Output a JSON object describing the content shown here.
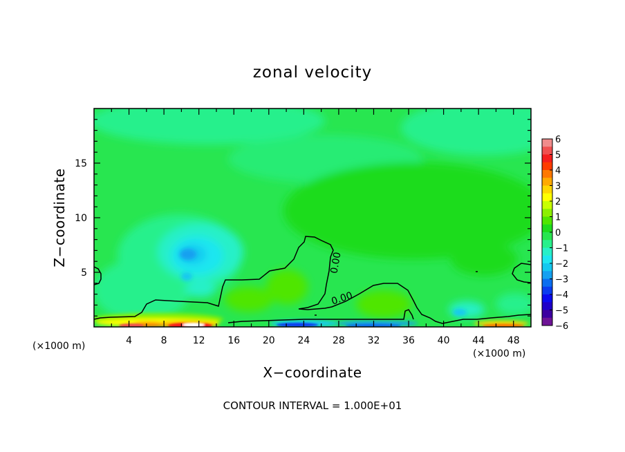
{
  "chart_data": {
    "type": "heatmap",
    "title": "zonal velocity",
    "xlabel": "X−coordinate",
    "ylabel": "Z−coordinate",
    "x_unit_left": "(×1000 m)",
    "x_unit_right": "(×1000 m)",
    "x_ticks": [
      "4",
      "8",
      "12",
      "16",
      "20",
      "24",
      "28",
      "32",
      "36",
      "40",
      "44",
      "48"
    ],
    "x_tick_values": [
      4,
      8,
      12,
      16,
      20,
      24,
      28,
      32,
      36,
      40,
      44,
      48
    ],
    "y_ticks": [
      "5",
      "10",
      "15"
    ],
    "y_tick_values": [
      5,
      10,
      15
    ],
    "xlim": [
      0,
      50
    ],
    "ylim": [
      0,
      20
    ],
    "contour_labels": [
      "0.00",
      "0.00"
    ],
    "colorbar": {
      "ticks": [
        "6",
        "5",
        "4",
        "3",
        "2",
        "1",
        "0",
        "−1",
        "−2",
        "−3",
        "−4",
        "−5",
        "−6"
      ],
      "levels": [
        {
          "range": [
            5.5,
            6
          ],
          "color": "#f08c8c"
        },
        {
          "range": [
            5,
            5.5
          ],
          "color": "#f05050"
        },
        {
          "range": [
            4.5,
            5
          ],
          "color": "#f51e1e"
        },
        {
          "range": [
            4,
            4.5
          ],
          "color": "#ff3c00"
        },
        {
          "range": [
            3.5,
            4
          ],
          "color": "#ff7800"
        },
        {
          "range": [
            3,
            3.5
          ],
          "color": "#ffaa00"
        },
        {
          "range": [
            2.5,
            3
          ],
          "color": "#ffd700"
        },
        {
          "range": [
            2,
            2.5
          ],
          "color": "#ffff00"
        },
        {
          "range": [
            1.5,
            2
          ],
          "color": "#c8ff00"
        },
        {
          "range": [
            1,
            1.5
          ],
          "color": "#8cf000"
        },
        {
          "range": [
            0.5,
            1
          ],
          "color": "#50e600"
        },
        {
          "range": [
            0,
            0.5
          ],
          "color": "#1edc1e"
        },
        {
          "range": [
            -0.5,
            0
          ],
          "color": "#28e650"
        },
        {
          "range": [
            -1,
            -0.5
          ],
          "color": "#28f08c"
        },
        {
          "range": [
            -1.5,
            -1
          ],
          "color": "#28f0c8"
        },
        {
          "range": [
            -2,
            -1.5
          ],
          "color": "#1ee6f0"
        },
        {
          "range": [
            -2.5,
            -2
          ],
          "color": "#14c8f0"
        },
        {
          "range": [
            -3,
            -2.5
          ],
          "color": "#14a0f0"
        },
        {
          "range": [
            -3.5,
            -3
          ],
          "color": "#0a6ef0"
        },
        {
          "range": [
            -4,
            -3.5
          ],
          "color": "#0a3cf0"
        },
        {
          "range": [
            -4.5,
            -4
          ],
          "color": "#0a0af0"
        },
        {
          "range": [
            -5,
            -4.5
          ],
          "color": "#1e00c8"
        },
        {
          "range": [
            -5.5,
            -5
          ],
          "color": "#3c00a0"
        },
        {
          "range": [
            -6,
            -5.5
          ],
          "color": "#6e1496"
        }
      ]
    },
    "note": "CONTOUR INTERVAL = 1.000E+01"
  }
}
